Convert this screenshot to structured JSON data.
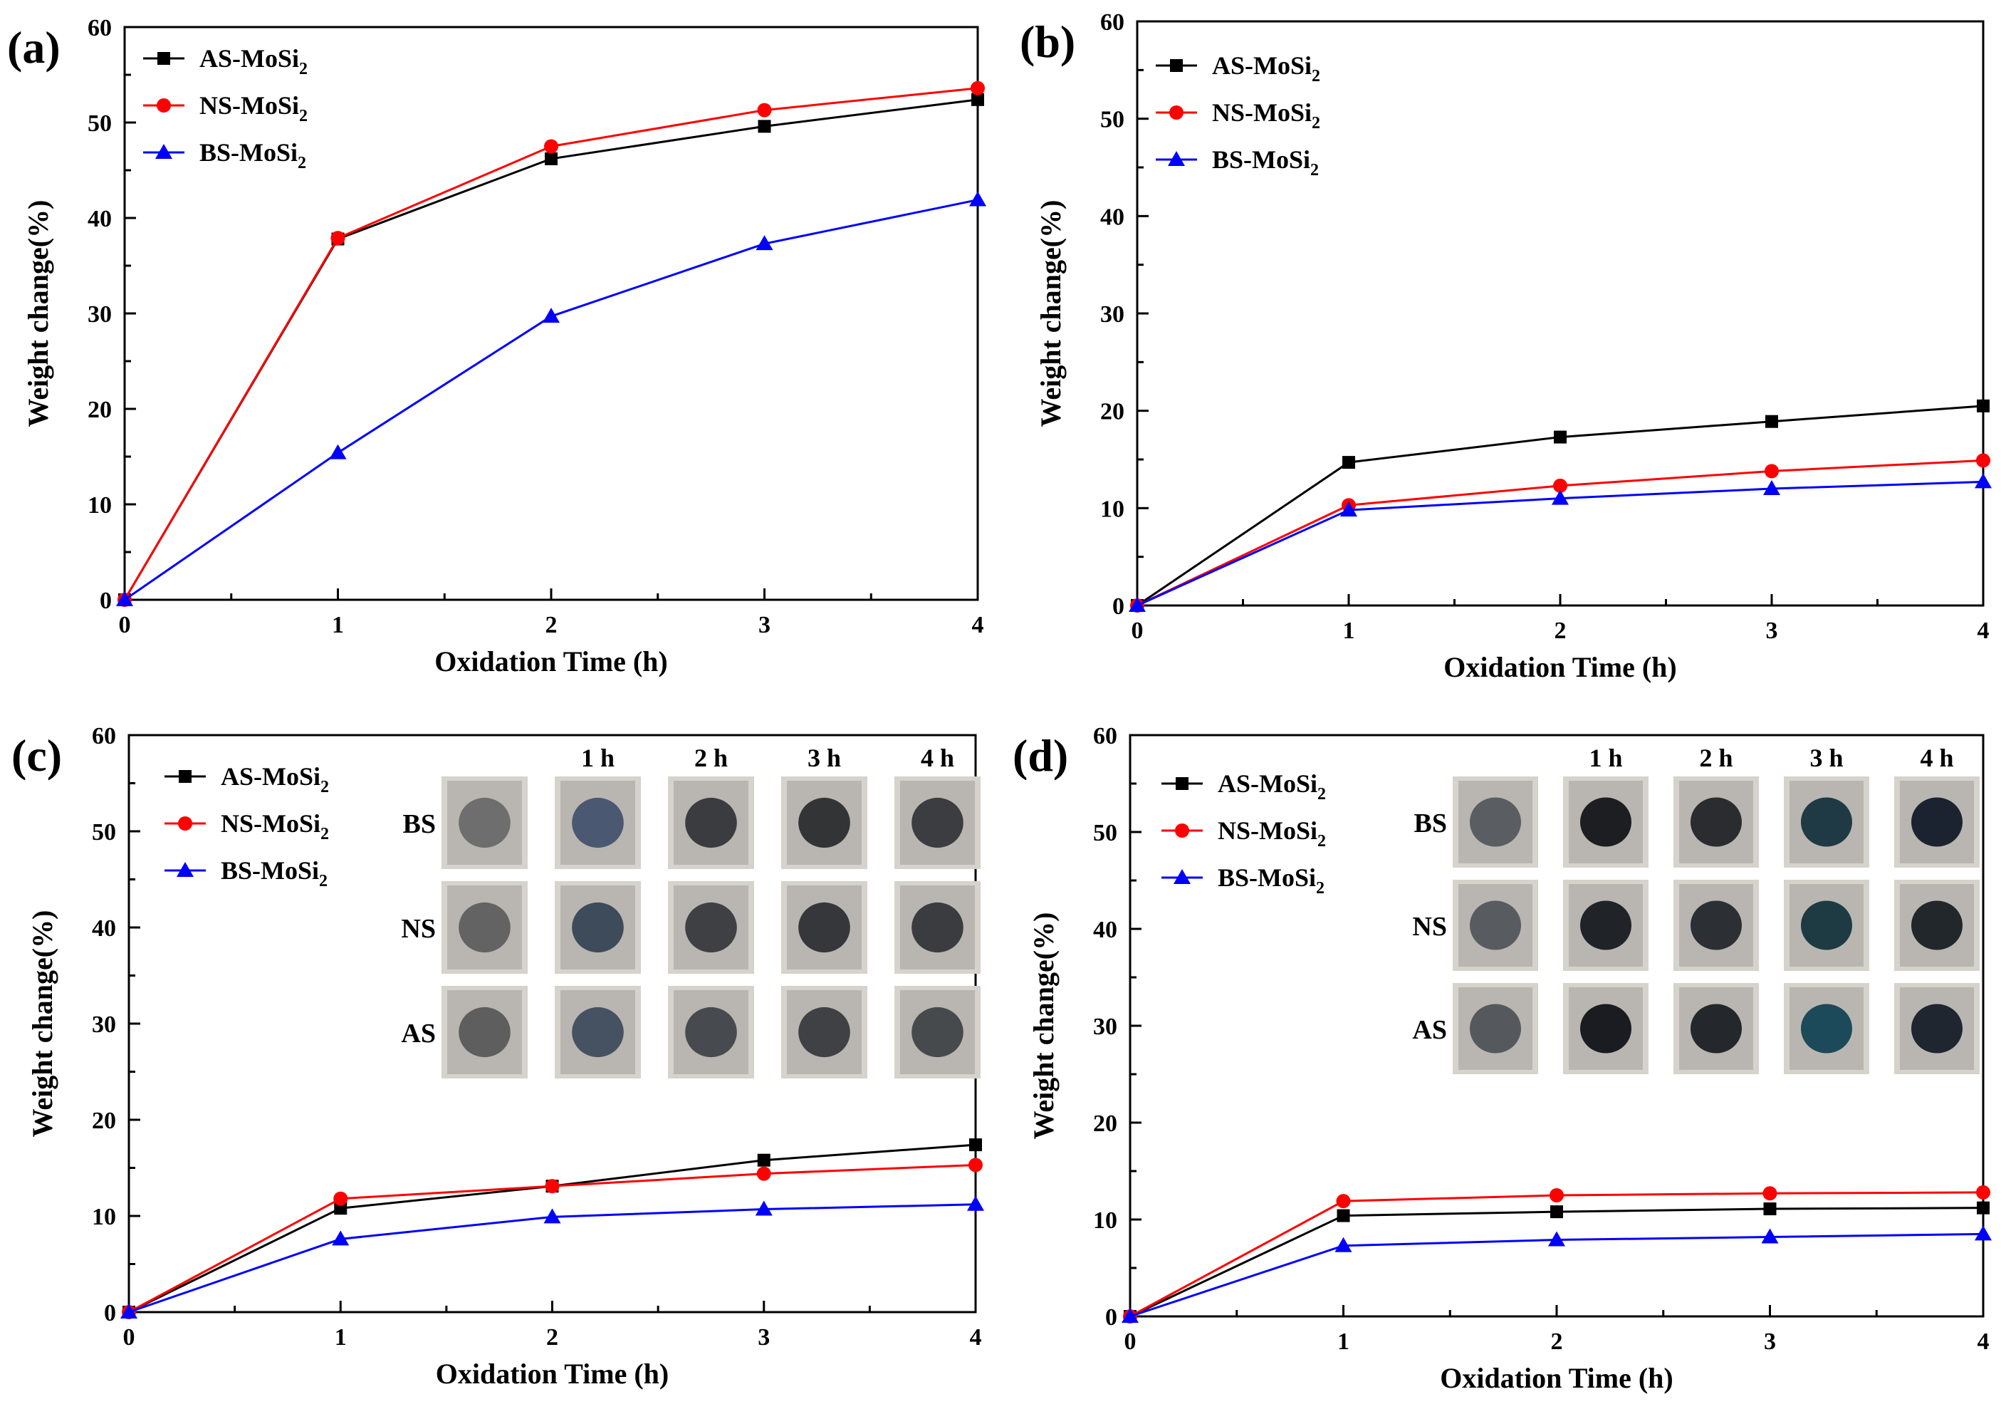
{
  "chart_data": [
    {
      "type": "line",
      "panel_label": "(a)",
      "xlabel": "Oxidation Time (h)",
      "ylabel": "Weight change(%)",
      "x": [
        0,
        1,
        2,
        3,
        4
      ],
      "xlim": [
        0,
        4
      ],
      "ylim": [
        0,
        60
      ],
      "xticks": [
        "0",
        "1",
        "2",
        "3",
        "4"
      ],
      "yticks": [
        "0",
        "10",
        "20",
        "30",
        "40",
        "50",
        "60"
      ],
      "grid": false,
      "legend_position": "top-left",
      "series": [
        {
          "name": "AS-MoSi",
          "name_subscript": "2",
          "color": "#000000",
          "marker": "square",
          "values": [
            0,
            37.8,
            46.2,
            49.6,
            52.4
          ]
        },
        {
          "name": "NS-MoSi",
          "name_subscript": "2",
          "color": "#ff0000",
          "marker": "circle",
          "values": [
            0,
            37.9,
            47.5,
            51.3,
            53.6
          ]
        },
        {
          "name": "BS-MoSi",
          "name_subscript": "2",
          "color": "#0000ff",
          "marker": "triangle",
          "values": [
            0,
            15.4,
            29.7,
            37.3,
            41.9
          ]
        }
      ]
    },
    {
      "type": "line",
      "panel_label": "(b)",
      "xlabel": "Oxidation Time (h)",
      "ylabel": "Weight change(%)",
      "x": [
        0,
        1,
        2,
        3,
        4
      ],
      "xlim": [
        0,
        4
      ],
      "ylim": [
        0,
        60
      ],
      "xticks": [
        "0",
        "1",
        "2",
        "3",
        "4"
      ],
      "yticks": [
        "0",
        "10",
        "20",
        "30",
        "40",
        "50",
        "60"
      ],
      "grid": false,
      "legend_position": "top-left",
      "series": [
        {
          "name": "AS-MoSi",
          "name_subscript": "2",
          "color": "#000000",
          "marker": "square",
          "values": [
            0,
            14.7,
            17.3,
            18.9,
            20.5
          ]
        },
        {
          "name": "NS-MoSi",
          "name_subscript": "2",
          "color": "#ff0000",
          "marker": "circle",
          "values": [
            0,
            10.3,
            12.3,
            13.8,
            14.9
          ]
        },
        {
          "name": "BS-MoSi",
          "name_subscript": "2",
          "color": "#0000ff",
          "marker": "triangle",
          "values": [
            0,
            9.8,
            11.0,
            12.0,
            12.7
          ]
        }
      ]
    },
    {
      "type": "line",
      "panel_label": "(c)",
      "xlabel": "Oxidation Time (h)",
      "ylabel": "Weight change(%)",
      "x": [
        0,
        1,
        2,
        3,
        4
      ],
      "xlim": [
        0,
        4
      ],
      "ylim": [
        0,
        60
      ],
      "xticks": [
        "0",
        "1",
        "2",
        "3",
        "4"
      ],
      "yticks": [
        "0",
        "10",
        "20",
        "30",
        "40",
        "50",
        "60"
      ],
      "grid": false,
      "legend_position": "top-left",
      "series": [
        {
          "name": "AS-MoSi",
          "name_subscript": "2",
          "color": "#000000",
          "marker": "square",
          "values": [
            0,
            10.8,
            13.1,
            15.8,
            17.4
          ]
        },
        {
          "name": "NS-MoSi",
          "name_subscript": "2",
          "color": "#ff0000",
          "marker": "circle",
          "values": [
            0,
            11.8,
            13.1,
            14.4,
            15.3
          ]
        },
        {
          "name": "BS-MoSi",
          "name_subscript": "2",
          "color": "#0000ff",
          "marker": "triangle",
          "values": [
            0,
            7.6,
            9.9,
            10.7,
            11.2
          ]
        }
      ],
      "inset": {
        "columns": [
          "",
          "1 h",
          "2 h",
          "3 h",
          "4 h"
        ],
        "rows": [
          "BS",
          "NS",
          "AS"
        ],
        "photo_tones": [
          [
            "#6e6e6e",
            "#4a5872",
            "#3a3c40",
            "#333436",
            "#3b3d40"
          ],
          [
            "#636363",
            "#3d4b5a",
            "#3e4044",
            "#35373a",
            "#3a3c3f"
          ],
          [
            "#5e5e5e",
            "#465262",
            "#474a4e",
            "#3f4144",
            "#474a4d"
          ]
        ]
      }
    },
    {
      "type": "line",
      "panel_label": "(d)",
      "xlabel": "Oxidation Time (h)",
      "ylabel": "Weight change(%)",
      "x": [
        0,
        1,
        2,
        3,
        4
      ],
      "xlim": [
        0,
        4
      ],
      "ylim": [
        0,
        60
      ],
      "xticks": [
        "0",
        "1",
        "2",
        "3",
        "4"
      ],
      "yticks": [
        "0",
        "10",
        "20",
        "30",
        "40",
        "50",
        "60"
      ],
      "grid": false,
      "legend_position": "top-left",
      "series": [
        {
          "name": "AS-MoSi",
          "name_subscript": "2",
          "color": "#000000",
          "marker": "square",
          "values": [
            0,
            10.4,
            10.8,
            11.1,
            11.2
          ]
        },
        {
          "name": "NS-MoSi",
          "name_subscript": "2",
          "color": "#ff0000",
          "marker": "circle",
          "values": [
            0,
            11.9,
            12.5,
            12.7,
            12.8
          ]
        },
        {
          "name": "BS-MoSi",
          "name_subscript": "2",
          "color": "#0000ff",
          "marker": "triangle",
          "values": [
            0,
            7.3,
            7.9,
            8.2,
            8.5
          ]
        }
      ],
      "inset": {
        "columns": [
          "",
          "1 h",
          "2 h",
          "3 h",
          "4 h"
        ],
        "rows": [
          "BS",
          "NS",
          "AS"
        ],
        "photo_tones": [
          [
            "#5a5e62",
            "#1c1e22",
            "#2a2c30",
            "#1f3a44",
            "#1c2330"
          ],
          [
            "#585c60",
            "#202428",
            "#2c3034",
            "#1e3a42",
            "#22272c"
          ],
          [
            "#55595d",
            "#1a1c22",
            "#24272b",
            "#1c4a5a",
            "#1f2630"
          ]
        ]
      }
    }
  ]
}
